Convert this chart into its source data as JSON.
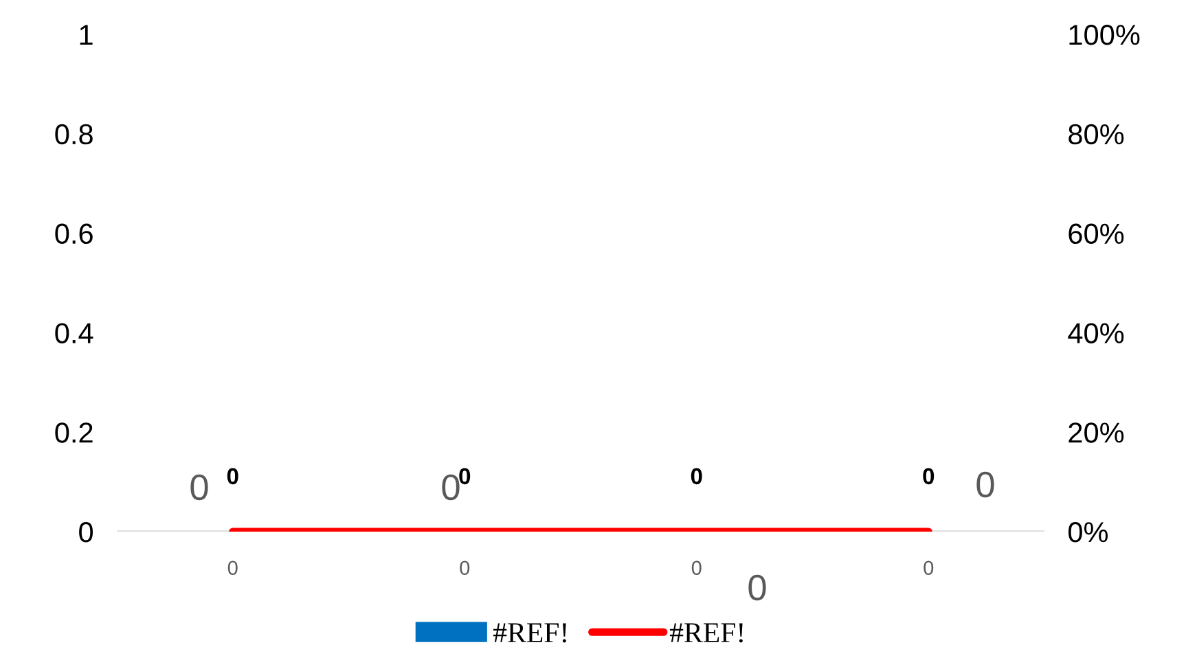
{
  "chart_data": {
    "type": "bar",
    "categories": [
      "0",
      "0",
      "0",
      "0"
    ],
    "series": [
      {
        "name": "#REF!",
        "color": "#0070c0",
        "values": [
          0,
          0,
          0,
          0
        ]
      },
      {
        "name": "#REF!",
        "type": "line",
        "color": "#ff0000",
        "values": [
          0,
          0,
          0,
          0
        ],
        "value_labels": [
          "0",
          "0",
          "0",
          "0"
        ]
      }
    ],
    "ylim": [
      0,
      1
    ],
    "yticks": [
      0,
      0.2,
      0.4,
      0.6,
      0.8,
      1
    ],
    "y2lim": [
      0,
      100
    ],
    "y2ticks": [
      {
        "value": 0,
        "label": "0%"
      },
      {
        "value": 20,
        "label": "20%"
      },
      {
        "value": 40,
        "label": "40%"
      },
      {
        "value": 60,
        "label": "60%"
      },
      {
        "value": 80,
        "label": "80%"
      },
      {
        "value": 100,
        "label": "100%"
      }
    ],
    "annotations": [
      "0",
      "0",
      "0",
      "0"
    ],
    "grid": false,
    "legend": "bottom",
    "marker": "none",
    "line_style": "solid"
  }
}
